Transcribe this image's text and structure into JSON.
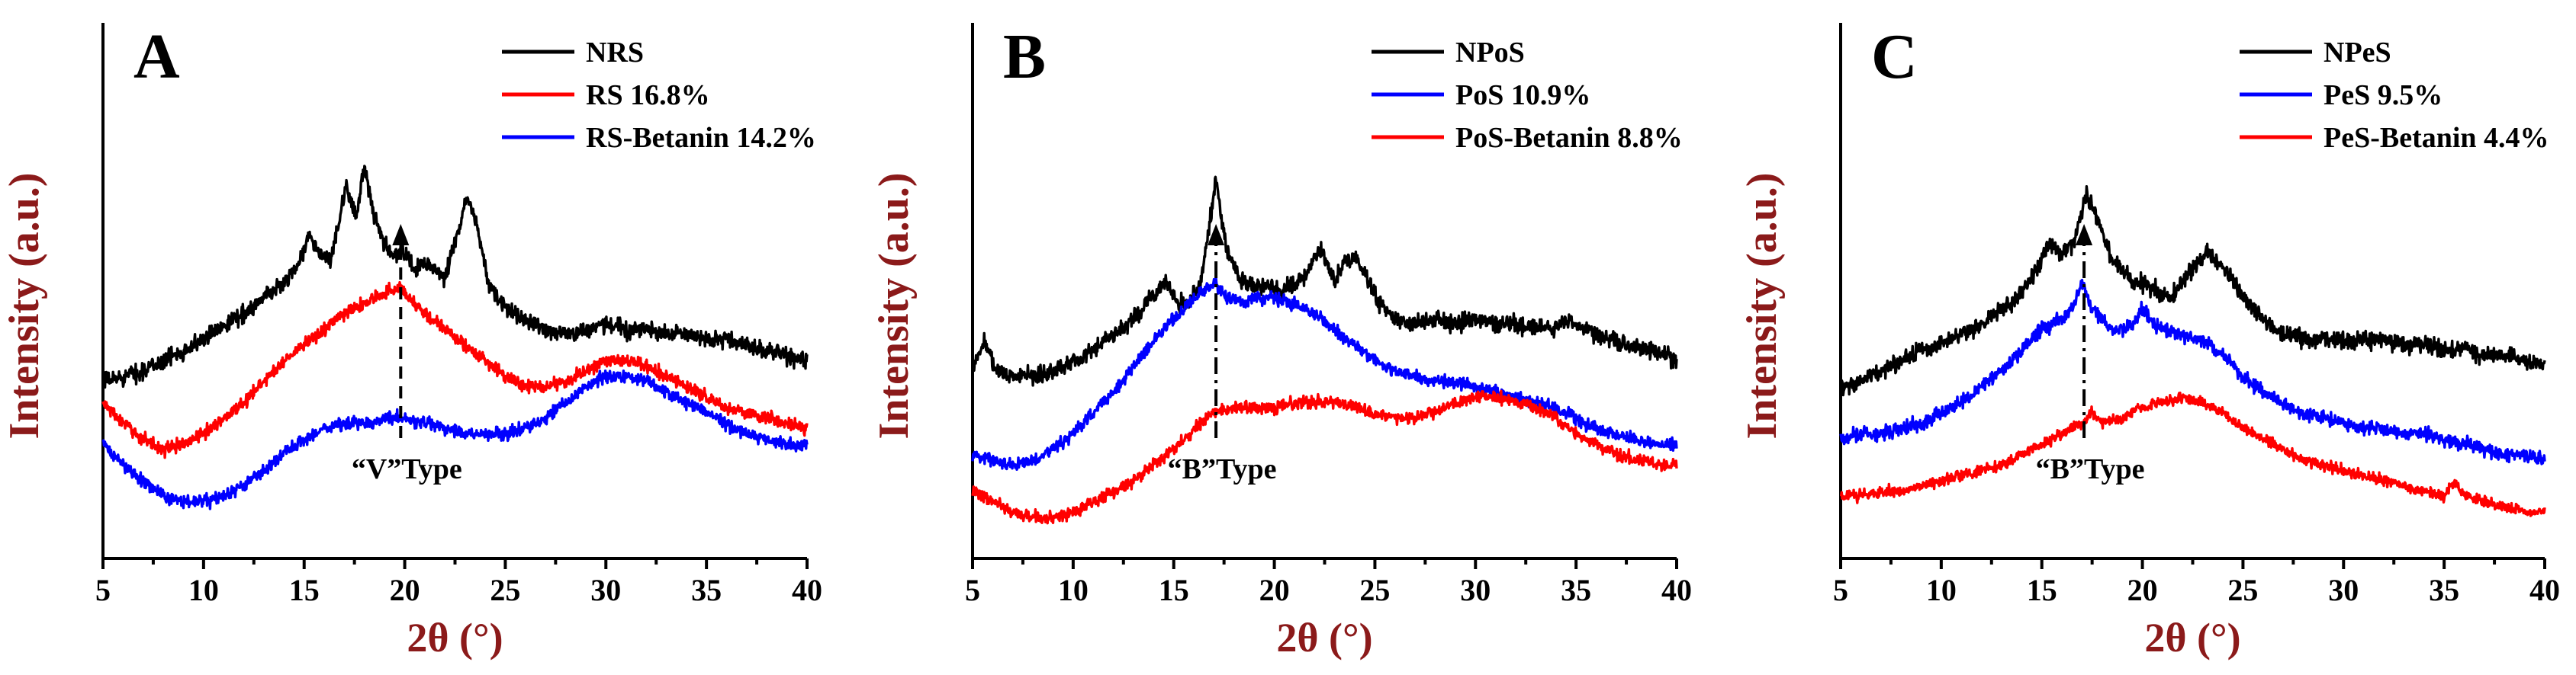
{
  "chart_data": [
    {
      "type": "line",
      "panel_label": "A",
      "xlabel": "2θ (°)",
      "ylabel": "Intensity (a.u.)",
      "xlim": [
        5,
        40
      ],
      "ylim": [
        0,
        100
      ],
      "xticks": [
        5,
        10,
        15,
        20,
        25,
        30,
        35,
        40
      ],
      "legend_position": "top-right",
      "annotation": {
        "text": "“V”Type",
        "x": 19.8,
        "style": "dashed"
      },
      "series": [
        {
          "name": "NRS",
          "color": "#000000",
          "noise": 1.6,
          "x": [
            5,
            6,
            7,
            8,
            9,
            10,
            11,
            12,
            13,
            14,
            14.8,
            15.2,
            15.7,
            16.3,
            17.1,
            17.6,
            18,
            18.5,
            19,
            19.5,
            20,
            20.5,
            21,
            21.5,
            22,
            22.6,
            23.1,
            23.6,
            24.2,
            25,
            26,
            27,
            28,
            29,
            30,
            31,
            32,
            33,
            34,
            35,
            36,
            37,
            38,
            39,
            40
          ],
          "y": [
            32,
            33,
            34,
            36,
            38,
            40,
            43,
            45,
            48,
            51,
            55,
            60,
            57,
            55,
            69,
            64,
            73,
            63,
            58,
            56,
            57,
            53,
            55,
            53,
            52,
            60,
            67,
            62,
            50,
            46,
            44,
            42,
            41,
            42,
            43,
            42,
            42,
            41,
            41,
            40,
            40,
            39,
            38,
            37,
            36
          ]
        },
        {
          "name": "RS 16.8%",
          "color": "#ff0000",
          "noise": 1.2,
          "x": [
            5,
            6,
            7,
            8,
            9,
            10,
            11,
            12,
            13,
            14,
            15,
            16,
            17,
            18,
            19,
            19.8,
            20.5,
            21,
            22,
            23,
            24,
            25,
            26,
            27,
            28,
            29,
            30,
            31,
            32,
            33,
            34,
            35,
            36,
            37,
            38,
            39,
            40
          ],
          "y": [
            28,
            24,
            21,
            19,
            20,
            22,
            25,
            28,
            32,
            36,
            39,
            42,
            45,
            47,
            49,
            50,
            47,
            45,
            42,
            39,
            36,
            33,
            31,
            31,
            32,
            34,
            36,
            36,
            35,
            33,
            31,
            29,
            27,
            26,
            25,
            24,
            23
          ]
        },
        {
          "name": "RS-Betanin 14.2%",
          "color": "#0000ff",
          "noise": 1.2,
          "x": [
            5,
            6,
            7,
            8,
            9,
            10,
            11,
            12,
            13,
            14,
            15,
            16,
            17,
            18,
            19,
            20,
            21,
            22,
            23,
            24,
            25,
            26,
            27,
            28,
            29,
            30,
            31,
            32,
            33,
            34,
            35,
            36,
            37,
            38,
            39,
            40
          ],
          "y": [
            20,
            16,
            13,
            10,
            9,
            9,
            10,
            12,
            15,
            18,
            21,
            23,
            24,
            24,
            25,
            25,
            24,
            23,
            22,
            22,
            22,
            23,
            25,
            28,
            31,
            33,
            33,
            32,
            30,
            28,
            26,
            24,
            22,
            21,
            20,
            20
          ]
        }
      ]
    },
    {
      "type": "line",
      "panel_label": "B",
      "xlabel": "2θ (°)",
      "ylabel": "Intensity (a.u.)",
      "xlim": [
        5,
        40
      ],
      "ylim": [
        0,
        100
      ],
      "xticks": [
        5,
        10,
        15,
        20,
        25,
        30,
        35,
        40
      ],
      "legend_position": "top-right",
      "annotation": {
        "text": "“B”Type",
        "x": 17.1,
        "style": "dash-dot"
      },
      "series": [
        {
          "name": "NPoS",
          "color": "#000000",
          "noise": 1.6,
          "x": [
            5,
            5.6,
            6.2,
            7,
            8,
            9,
            10,
            11,
            12,
            13,
            13.8,
            14.6,
            15.2,
            15.8,
            16.4,
            17.1,
            17.6,
            18.2,
            19,
            19.6,
            20.3,
            21,
            21.6,
            22.3,
            23,
            23.5,
            24,
            24.6,
            25.2,
            26,
            27,
            28,
            29,
            30,
            31,
            32,
            33,
            34,
            34.6,
            35.5,
            36.5,
            37.5,
            38.5,
            39.5,
            40
          ],
          "y": [
            34,
            40,
            34,
            33,
            33,
            34,
            36,
            38,
            41,
            44,
            48,
            51,
            47,
            47,
            52,
            71,
            58,
            52,
            50,
            51,
            49,
            51,
            53,
            58,
            51,
            55,
            56,
            52,
            47,
            44,
            43,
            44,
            43,
            44,
            43,
            43,
            42,
            42,
            44,
            42,
            40,
            39,
            38,
            37,
            36
          ]
        },
        {
          "name": "PoS 10.9%",
          "color": "#0000ff",
          "noise": 1.2,
          "x": [
            5,
            6,
            7,
            8,
            9,
            10,
            11,
            12,
            13,
            14,
            15,
            16,
            17,
            17.6,
            18.5,
            19,
            20,
            21,
            22,
            23,
            24,
            25,
            26,
            27,
            28,
            29,
            30,
            31,
            32,
            33,
            34,
            35,
            36,
            37,
            38,
            39,
            40
          ],
          "y": [
            18,
            17,
            16,
            17,
            19,
            22,
            26,
            30,
            35,
            40,
            44,
            48,
            51,
            48,
            47,
            48,
            48,
            47,
            45,
            42,
            39,
            36,
            34,
            33,
            32,
            32,
            31,
            30,
            29,
            28,
            27,
            25,
            23,
            22,
            21,
            20,
            20
          ]
        },
        {
          "name": "PoS-Betanin 8.8%",
          "color": "#ff0000",
          "noise": 1.1,
          "x": [
            5,
            6,
            7,
            8,
            9,
            10,
            11,
            12,
            13,
            14,
            15,
            16,
            17,
            18,
            19,
            20,
            21,
            22,
            23,
            24,
            25,
            26,
            27,
            28,
            29,
            30,
            31,
            32,
            33,
            34,
            35,
            36,
            37,
            38,
            39,
            40
          ],
          "y": [
            11,
            9,
            7,
            6,
            6,
            7,
            9,
            11,
            13,
            16,
            19,
            23,
            26,
            27,
            27,
            27,
            28,
            28,
            28,
            27,
            26,
            25,
            25,
            26,
            28,
            29,
            29,
            28,
            27,
            25,
            22,
            20,
            18,
            17,
            16,
            16
          ]
        }
      ]
    },
    {
      "type": "line",
      "panel_label": "C",
      "xlabel": "2θ (°)",
      "ylabel": "Intensity (a.u.)",
      "xlim": [
        5,
        40
      ],
      "ylim": [
        0,
        100
      ],
      "xticks": [
        5,
        10,
        15,
        20,
        25,
        30,
        35,
        40
      ],
      "legend_position": "top-right",
      "annotation": {
        "text": "“B”Type",
        "x": 17.1,
        "style": "dash-dot"
      },
      "series": [
        {
          "name": "NPeS",
          "color": "#000000",
          "noise": 1.6,
          "x": [
            5,
            6,
            7,
            8,
            9,
            10,
            11,
            12,
            13,
            14,
            14.8,
            15.4,
            16,
            16.6,
            17.2,
            17.8,
            18.4,
            19,
            19.6,
            20.2,
            20.8,
            21.4,
            22,
            22.6,
            23.2,
            23.8,
            24.4,
            25,
            26,
            27,
            28,
            29,
            30,
            31,
            32,
            33,
            34,
            35,
            36,
            37,
            38,
            39,
            40
          ],
          "y": [
            31,
            32,
            34,
            36,
            38,
            39,
            41,
            43,
            46,
            49,
            54,
            59,
            56,
            59,
            68,
            63,
            56,
            53,
            51,
            51,
            49,
            48,
            51,
            54,
            57,
            55,
            52,
            48,
            44,
            41,
            40,
            40,
            40,
            40,
            40,
            39,
            39,
            38,
            38,
            37,
            37,
            36,
            35
          ]
        },
        {
          "name": "PeS 9.5%",
          "color": "#0000ff",
          "noise": 1.3,
          "x": [
            5,
            6,
            7,
            8,
            9,
            10,
            11,
            12,
            13,
            14,
            15,
            16,
            16.5,
            17,
            17.5,
            18,
            18.5,
            19,
            19.5,
            20,
            20.5,
            21,
            22,
            23,
            24,
            25,
            26,
            27,
            28,
            29,
            30,
            31,
            32,
            33,
            34,
            35,
            36,
            37,
            38,
            39,
            40
          ],
          "y": [
            21,
            22,
            22,
            23,
            24,
            26,
            28,
            31,
            34,
            38,
            42,
            44,
            46,
            51,
            46,
            44,
            42,
            42,
            43,
            46,
            43,
            42,
            41,
            40,
            37,
            33,
            30,
            28,
            26,
            25,
            24,
            23,
            23,
            22,
            22,
            21,
            20,
            19,
            18,
            18,
            17
          ]
        },
        {
          "name": "PeS-Betanin 4.4%",
          "color": "#ff0000",
          "noise": 1.0,
          "x": [
            5,
            6,
            7,
            8,
            9,
            10,
            11,
            12,
            13,
            14,
            15,
            16,
            17,
            17.5,
            18,
            19,
            20,
            21,
            22,
            23,
            24,
            25,
            26,
            27,
            28,
            29,
            30,
            31,
            32,
            33,
            34,
            35,
            35.5,
            36,
            37,
            38,
            39,
            40
          ],
          "y": [
            10,
            10,
            11,
            11,
            12,
            13,
            14,
            15,
            16,
            18,
            20,
            22,
            24,
            26,
            24,
            25,
            27,
            28,
            29,
            28,
            26,
            23,
            21,
            19,
            17,
            16,
            15,
            14,
            13,
            12,
            11,
            10,
            13,
            10,
            9,
            8,
            7,
            7
          ]
        }
      ]
    }
  ]
}
